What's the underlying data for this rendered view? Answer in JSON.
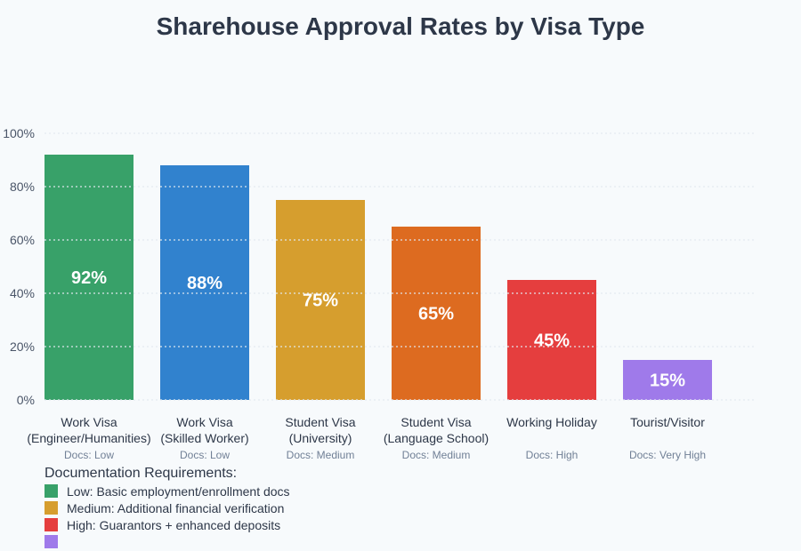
{
  "chart_data": {
    "type": "bar",
    "title": "Sharehouse Approval Rates by Visa Type",
    "categories": [
      [
        "Work Visa",
        "(Engineer/Humanities)"
      ],
      [
        "Work Visa",
        "(Skilled Worker)"
      ],
      [
        "Student Visa",
        "(University)"
      ],
      [
        "Student Visa",
        "(Language School)"
      ],
      [
        "Working Holiday"
      ],
      [
        "Tourist/Visitor"
      ]
    ],
    "values": [
      92,
      88,
      75,
      65,
      45,
      15
    ],
    "value_labels": [
      "92%",
      "88%",
      "75%",
      "65%",
      "45%",
      "15%"
    ],
    "docs_labels": [
      "Docs: Low",
      "Docs: Low",
      "Docs: Medium",
      "Docs: Medium",
      "Docs: High",
      "Docs: Very High"
    ],
    "colors": [
      "#38a169",
      "#3182ce",
      "#d69e2e",
      "#dd6b20",
      "#e53e3e",
      "#9f7aea"
    ],
    "ylim": [
      0,
      100
    ],
    "yticks": [
      0,
      20,
      40,
      60,
      80,
      100
    ],
    "ytick_labels": [
      "0%",
      "20%",
      "40%",
      "60%",
      "80%",
      "100%"
    ],
    "grid": true,
    "legend_placement": "bottom-left"
  },
  "legend": {
    "title": "Documentation Requirements:",
    "items": [
      {
        "label": "Low: Basic employment/enrollment docs",
        "color": "#38a169"
      },
      {
        "label": "Medium: Additional financial verification",
        "color": "#d69e2e"
      },
      {
        "label": "High: Guarantors + enhanced deposits",
        "color": "#e53e3e"
      },
      {
        "label": "",
        "color": "#9f7aea"
      }
    ]
  }
}
